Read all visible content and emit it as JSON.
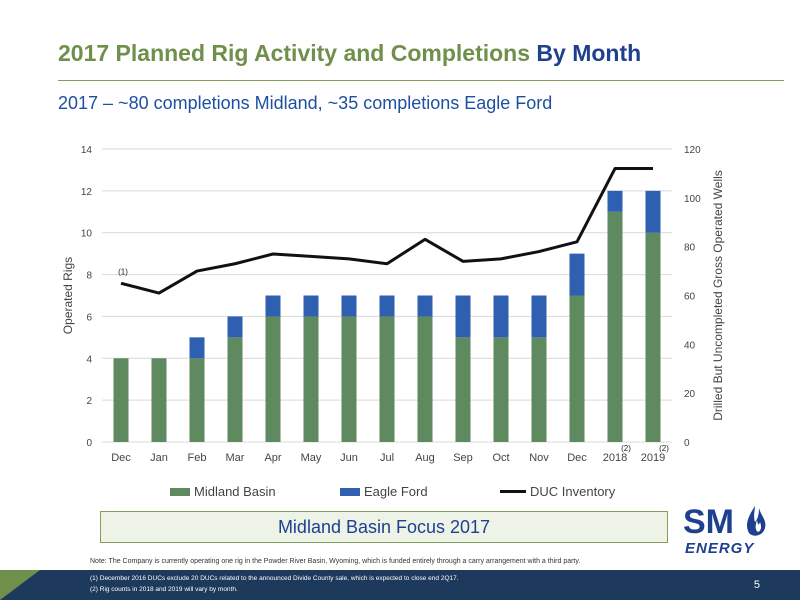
{
  "header": {
    "title_main": "2017 Planned Rig Activity and Completions",
    "title_accent": "By Month",
    "subtitle": "2017 – ~80 completions Midland, ~35 completions Eagle Ford"
  },
  "chart_data": {
    "type": "bar",
    "stacked": true,
    "categories": [
      "Dec",
      "Jan",
      "Feb",
      "Mar",
      "Apr",
      "May",
      "Jun",
      "Jul",
      "Aug",
      "Sep",
      "Oct",
      "Nov",
      "Dec",
      "2018",
      "2019"
    ],
    "series": [
      {
        "name": "Midland Basin",
        "color": "#5f8a5f",
        "values": [
          4,
          4,
          4,
          5,
          6,
          6,
          6,
          6,
          6,
          5,
          5,
          5,
          7,
          11,
          10
        ]
      },
      {
        "name": "Eagle Ford",
        "color": "#2f5fb0",
        "values": [
          0,
          0,
          1,
          1,
          1,
          1,
          1,
          1,
          1,
          2,
          2,
          2,
          2,
          1,
          2
        ]
      }
    ],
    "line_series": {
      "name": "DUC Inventory",
      "color": "#111111",
      "axis": "right",
      "values": [
        65,
        61,
        70,
        73,
        77,
        76,
        75,
        73,
        83,
        74,
        75,
        78,
        82,
        112,
        112
      ]
    },
    "ylabel": "Operated Rigs",
    "y2label": "Drilled But Uncompleted Gross Operated Wells",
    "ylim": [
      0,
      14
    ],
    "y2lim": [
      0,
      120
    ],
    "yticks": [
      0,
      2,
      4,
      6,
      8,
      10,
      12,
      14
    ],
    "y2ticks": [
      0,
      20,
      40,
      60,
      80,
      100,
      120
    ],
    "grid": true,
    "legend_position": "bottom",
    "annotations": [
      {
        "text": "(1)",
        "category_index": 0
      },
      {
        "text": "(2)",
        "category_index": 13
      },
      {
        "text": "(2)",
        "category_index": 14
      }
    ]
  },
  "legend": {
    "midland": "Midland Basin",
    "eagle": "Eagle Ford",
    "duc": "DUC Inventory"
  },
  "focus_box": "Midland Basin Focus 2017",
  "logo": {
    "top": "SM",
    "bottom": "ENERGY",
    "icon": "flame-icon",
    "color": "#1f3f8f"
  },
  "note": "Note: The Company is currently operating one rig in the Powder River Basin, Wyoming, which is funded entirely through a carry arrangement with a third party.",
  "footnotes": [
    "(1)     December 2016 DUCs exclude 20 DUCs related to the announced Divide County sale, which is expected to close end 2Q17.",
    "(2)     Rig counts in 2018 and 2019 will vary by month."
  ],
  "page_number": "5"
}
